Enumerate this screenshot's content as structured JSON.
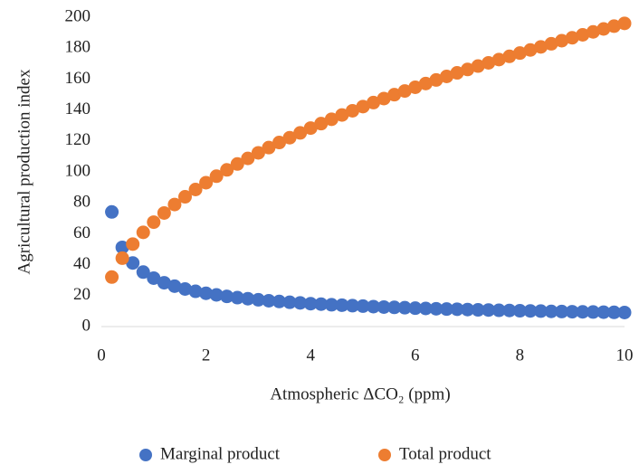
{
  "chart_data": {
    "type": "scatter",
    "x_label": "Atmospheric ΔCO₂  (ppm)",
    "y_label": "Agricultural production index",
    "x": [
      0.2,
      0.4,
      0.6,
      0.8,
      1.0,
      1.2,
      1.4,
      1.6,
      1.8,
      2.0,
      2.2,
      2.4,
      2.6,
      2.8,
      3.0,
      3.2,
      3.4,
      3.6,
      3.8,
      4.0,
      4.2,
      4.4,
      4.6,
      4.8,
      5.0,
      5.2,
      5.4,
      5.6,
      5.8,
      6.0,
      6.2,
      6.4,
      6.6,
      6.8,
      7.0,
      7.2,
      7.4,
      7.6,
      7.8,
      8.0,
      8.2,
      8.4,
      8.6,
      8.8,
      9.0,
      9.2,
      9.4,
      9.6,
      9.8,
      10.0
    ],
    "series": [
      {
        "name": "Marginal product",
        "color": "#4472c4",
        "values": [
          74.1,
          51.2,
          41.1,
          35.2,
          31.3,
          28.3,
          26.1,
          24.3,
          22.8,
          21.5,
          20.5,
          19.5,
          18.7,
          18.0,
          17.3,
          16.7,
          16.2,
          15.7,
          15.3,
          14.8,
          14.5,
          14.1,
          13.8,
          13.5,
          13.2,
          12.9,
          12.6,
          12.4,
          12.2,
          11.9,
          11.7,
          11.5,
          11.3,
          11.2,
          11.0,
          10.8,
          10.7,
          10.5,
          10.4,
          10.2,
          10.1,
          10.0,
          9.8,
          9.7,
          9.6,
          9.5,
          9.4,
          9.3,
          9.2,
          9.1
        ]
      },
      {
        "name": "Total product",
        "color": "#ed7d31",
        "values": [
          32.0,
          44.2,
          53.3,
          60.9,
          67.5,
          73.4,
          78.9,
          83.9,
          88.6,
          93.0,
          97.2,
          101.3,
          105.1,
          108.7,
          112.3,
          115.7,
          119.0,
          122.1,
          125.2,
          128.3,
          131.2,
          134.0,
          136.8,
          139.5,
          142.2,
          144.8,
          147.4,
          149.9,
          152.3,
          154.7,
          157.1,
          159.4,
          161.7,
          164.0,
          166.2,
          168.4,
          170.5,
          172.6,
          174.7,
          176.8,
          178.8,
          180.8,
          182.8,
          184.8,
          186.7,
          188.6,
          190.5,
          192.4,
          194.2,
          196.0
        ]
      }
    ],
    "xlim": [
      0,
      10
    ],
    "xticks": [
      0,
      2,
      4,
      6,
      8,
      10
    ],
    "ylim": [
      0,
      200
    ],
    "yticks": [
      0,
      20,
      40,
      60,
      80,
      100,
      120,
      140,
      160,
      180,
      200
    ],
    "grid": false,
    "legend": "bottom"
  }
}
